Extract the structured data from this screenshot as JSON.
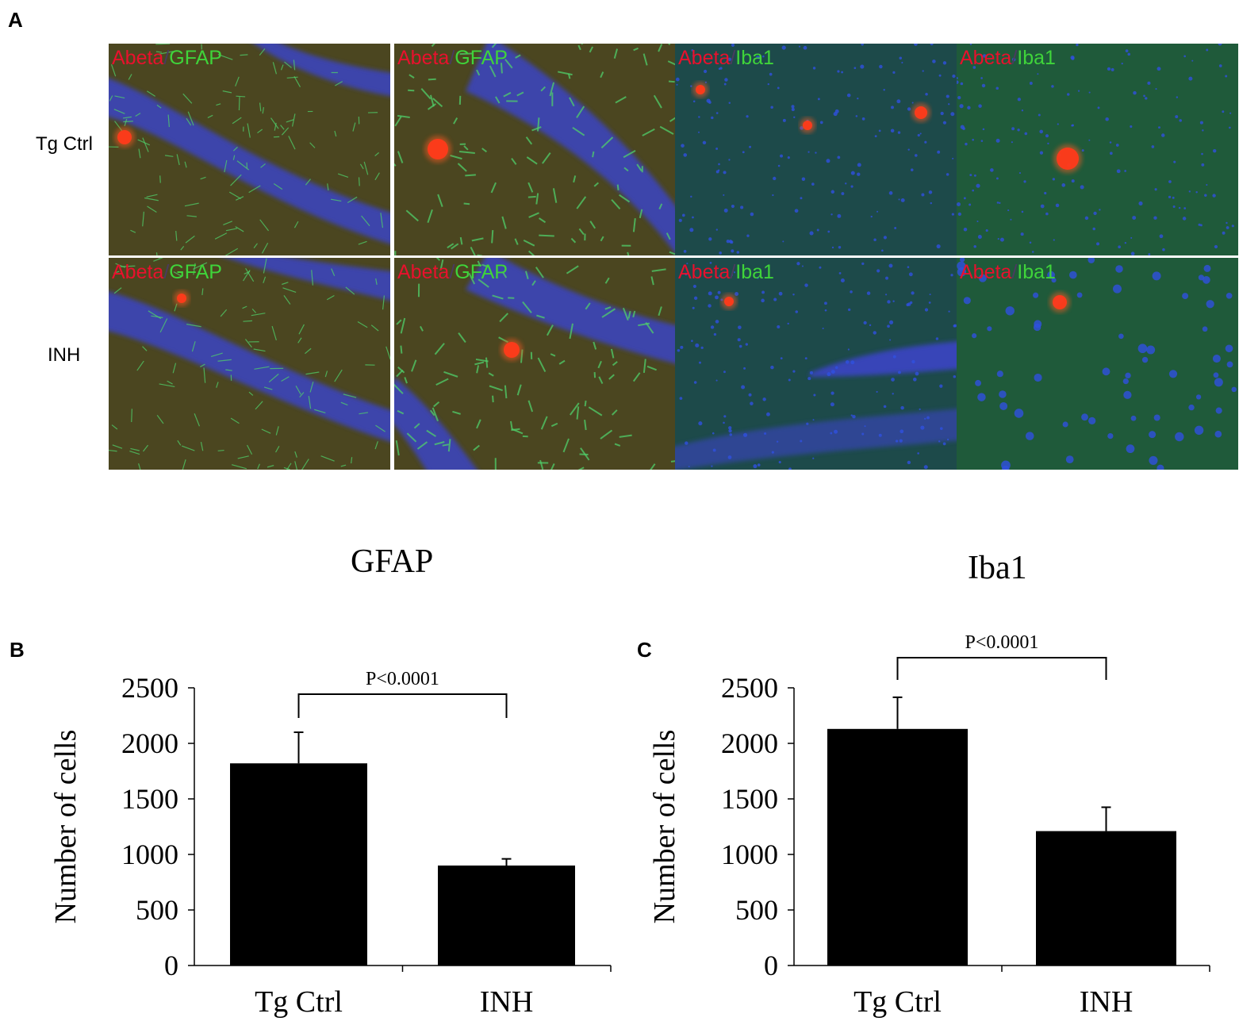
{
  "panel_a": {
    "letter": "A",
    "row_labels": [
      "Tg Ctrl",
      "INH"
    ],
    "images": [
      {
        "row": "Tg Ctrl",
        "red": "Abeta",
        "sep": "/",
        "green": "GFAP",
        "style": "gfap"
      },
      {
        "row": "Tg Ctrl",
        "red": "Abeta",
        "sep": "/",
        "green": "GFAP",
        "style": "gfap-zoom"
      },
      {
        "row": "Tg Ctrl",
        "red": "Abeta",
        "sep": "/",
        "green": "Iba1",
        "style": "iba"
      },
      {
        "row": "Tg Ctrl",
        "red": "Abeta",
        "sep": "/",
        "green": "Iba1",
        "style": "iba-zoom"
      },
      {
        "row": "INH",
        "red": "Abeta",
        "sep": "/",
        "green": "GFAP",
        "style": "gfap"
      },
      {
        "row": "INH",
        "red": "Abeta",
        "sep": "/",
        "green": "GFAP",
        "style": "gfap-zoom"
      },
      {
        "row": "INH",
        "red": "Abeta",
        "sep": "/",
        "green": "Iba1",
        "style": "iba"
      },
      {
        "row": "INH",
        "red": "Abeta",
        "sep": "/",
        "green": "Iba1",
        "style": "iba-zoom"
      }
    ],
    "colors": {
      "red_label": "#e8112d",
      "green_label": "#3fd43a",
      "nuclei": "#2a3cc8",
      "tissue": "#4a4a1e"
    }
  },
  "section_titles": {
    "left": "GFAP",
    "right": "Iba1"
  },
  "chart_data": [
    {
      "panel": "B",
      "type": "bar",
      "categories": [
        "Tg Ctrl",
        "INH"
      ],
      "values": [
        1820,
        900
      ],
      "error": [
        280,
        60
      ],
      "ylabel": "Number of cells",
      "yticks": [
        0,
        500,
        1000,
        1500,
        2000,
        2500
      ],
      "ylim": [
        0,
        2500
      ],
      "significance": {
        "between": [
          0,
          1
        ],
        "label": "P<0.0001"
      },
      "bar_color": "#000000"
    },
    {
      "panel": "C",
      "type": "bar",
      "categories": [
        "Tg Ctrl",
        "INH"
      ],
      "values": [
        2130,
        1210
      ],
      "error": [
        285,
        215
      ],
      "ylabel": "Number of cells",
      "yticks": [
        0,
        500,
        1000,
        1500,
        2000,
        2500
      ],
      "ylim": [
        0,
        2500
      ],
      "significance": {
        "between": [
          0,
          1
        ],
        "label": "P<0.0001"
      },
      "bar_color": "#000000"
    }
  ]
}
